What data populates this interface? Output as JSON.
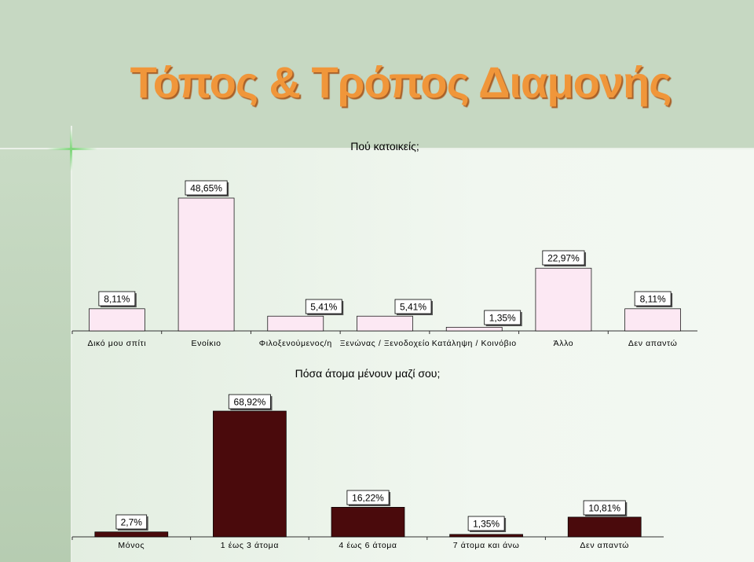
{
  "title": "Τόπος & Τρόπος Διαμονής",
  "colors": {
    "title": "#f0963a",
    "bar1_fill": "#fce8f3",
    "bar2_fill": "#4a0a0c"
  },
  "chart_data": [
    {
      "type": "bar",
      "title": "Πού κατοικείς;",
      "categories": [
        "Δικό μου σπίτι",
        "Ενοίκιο",
        "Φιλοξενούμενος/η",
        "Ξενώνας / Ξενοδοχείο",
        "Κατάληψη / Κοινόβιο",
        "Άλλο",
        "Δεν απαντώ"
      ],
      "values": [
        8.11,
        48.65,
        5.41,
        5.41,
        1.35,
        22.97,
        8.11
      ],
      "labels": [
        "8,11%",
        "48,65%",
        "5,41%",
        "5,41%",
        "1,35%",
        "22,97%",
        "8,11%"
      ]
    },
    {
      "type": "bar",
      "title": "Πόσα άτομα μένουν μαζί σου;",
      "categories": [
        "Μόνος",
        "1 έως 3 άτομα",
        "4 έως 6 άτομα",
        "7 άτομα και άνω",
        "Δεν απαντώ"
      ],
      "values": [
        2.7,
        68.92,
        16.22,
        1.35,
        10.81
      ],
      "labels": [
        "2,7%",
        "68,92%",
        "16,22%",
        "1,35%",
        "10,81%"
      ]
    }
  ]
}
